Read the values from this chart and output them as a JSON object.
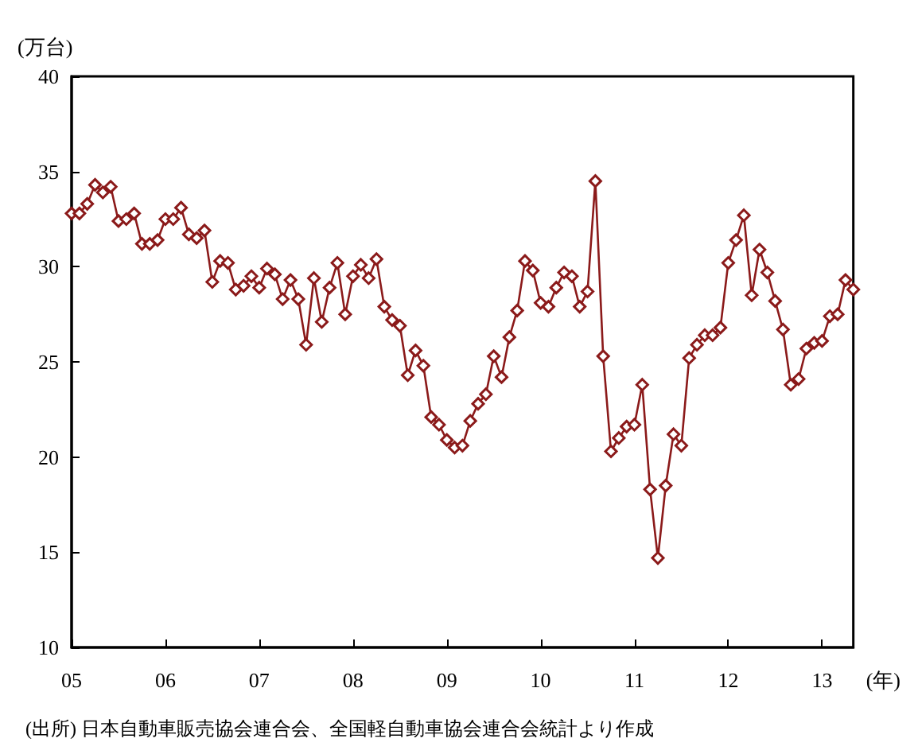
{
  "chart_data": {
    "type": "line",
    "ylabel": "(万台)",
    "xlabel": "(年)",
    "categories": [
      "05",
      null,
      null,
      null,
      null,
      null,
      null,
      null,
      null,
      null,
      null,
      null,
      "06",
      null,
      null,
      null,
      null,
      null,
      null,
      null,
      null,
      null,
      null,
      null,
      "07",
      null,
      null,
      null,
      null,
      null,
      null,
      null,
      null,
      null,
      null,
      null,
      "08",
      null,
      null,
      null,
      null,
      null,
      null,
      null,
      null,
      null,
      null,
      null,
      "09",
      null,
      null,
      null,
      null,
      null,
      null,
      null,
      null,
      null,
      null,
      null,
      "10",
      null,
      null,
      null,
      null,
      null,
      null,
      null,
      null,
      null,
      null,
      null,
      "11",
      null,
      null,
      null,
      null,
      null,
      null,
      null,
      null,
      null,
      null,
      null,
      "12",
      null,
      null,
      null,
      null,
      null,
      null,
      null,
      null,
      null,
      null,
      null,
      "13",
      null,
      null,
      null,
      null
    ],
    "series": [
      {
        "color": "#8b1a1a",
        "values": [
          32.8,
          32.8,
          33.3,
          34.3,
          33.9,
          34.2,
          32.4,
          32.5,
          32.8,
          31.2,
          31.2,
          31.4,
          32.5,
          32.5,
          33.1,
          31.7,
          31.5,
          31.9,
          29.2,
          30.3,
          30.2,
          28.8,
          29.0,
          29.5,
          28.9,
          29.9,
          29.6,
          28.3,
          29.3,
          28.3,
          25.9,
          29.4,
          27.1,
          28.9,
          30.2,
          27.5,
          29.5,
          30.1,
          29.4,
          30.4,
          27.9,
          27.2,
          26.9,
          24.3,
          25.6,
          24.8,
          22.1,
          21.7,
          20.9,
          20.5,
          20.6,
          21.9,
          22.8,
          23.3,
          25.3,
          24.2,
          26.3,
          27.7,
          30.3,
          29.8,
          28.1,
          27.9,
          28.9,
          29.7,
          29.5,
          27.9,
          28.7,
          34.5,
          25.3,
          20.3,
          21.0,
          21.6,
          21.7,
          23.8,
          18.3,
          14.7,
          18.5,
          21.2,
          20.6,
          25.2,
          25.9,
          26.4,
          26.4,
          26.8,
          30.2,
          31.4,
          32.7,
          28.5,
          30.9,
          29.7,
          28.2,
          26.7,
          23.8,
          24.1,
          25.7,
          26.0,
          26.1,
          27.4,
          27.5,
          29.3,
          28.8
        ]
      }
    ],
    "ylim": [
      10,
      40
    ],
    "yticks": [
      10,
      15,
      20,
      25,
      30,
      35,
      40
    ],
    "marker": "diamond",
    "line_style": "solid",
    "grid": false,
    "annotations": [
      "(出所) 日本自動車販売協会連合会、全国軽自動車協会連合会統計より作成"
    ]
  }
}
